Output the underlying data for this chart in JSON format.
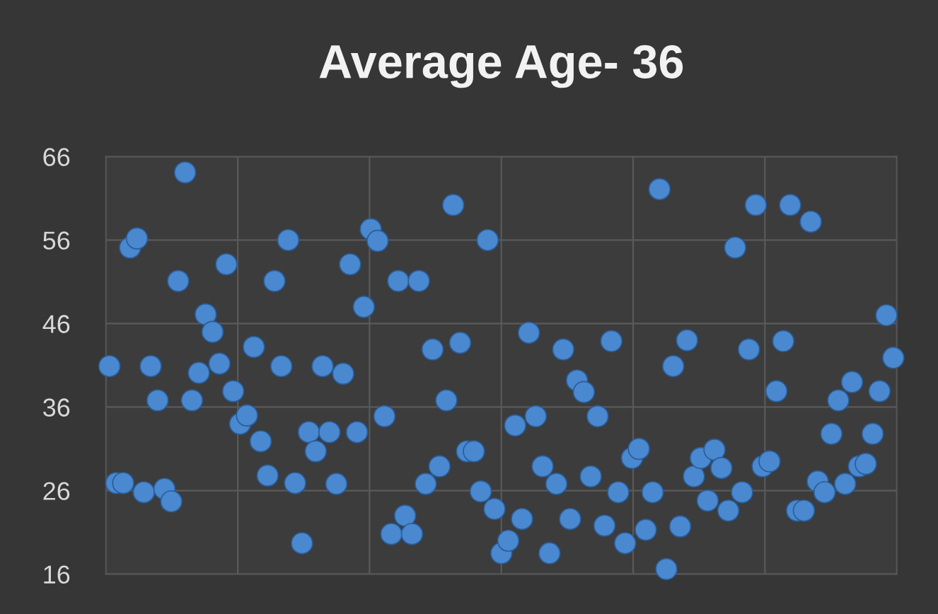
{
  "chart_data": {
    "type": "scatter",
    "title": "Average Age- 36",
    "categories": [
      null,
      null,
      null,
      null,
      null,
      null,
      null,
      null,
      null,
      null,
      null,
      null,
      null,
      null,
      null,
      null,
      null,
      null,
      null,
      null,
      null,
      null,
      null,
      null,
      null,
      null,
      null,
      null,
      null,
      null,
      null,
      null,
      null,
      null,
      null,
      null,
      null,
      null,
      null,
      null,
      null,
      null,
      null,
      null,
      null,
      null,
      null,
      null,
      null,
      null,
      null,
      null,
      null,
      null,
      null,
      null,
      null,
      null,
      null,
      null,
      null,
      null,
      null,
      null,
      null,
      null,
      null,
      null,
      null,
      null,
      null,
      null,
      null,
      null,
      null,
      null,
      null,
      null,
      null,
      null,
      null,
      null,
      null,
      null,
      null,
      null,
      null,
      null,
      null,
      null,
      null,
      null,
      null,
      null,
      null,
      null,
      null,
      null,
      null,
      null,
      null,
      null,
      null,
      null,
      null,
      null,
      null,
      null,
      null,
      null,
      null,
      null,
      null,
      null,
      null
    ],
    "series": [
      {
        "color": "#4a88cf",
        "values": [
          40.9,
          26.9,
          26.9,
          55.1,
          56.2,
          25.8,
          40.9,
          36.8,
          26.2,
          24.7,
          51.1,
          64.1,
          36.8,
          40.1,
          47.1,
          45.0,
          41.2,
          53.1,
          37.9,
          34.0,
          35.0,
          43.2,
          31.9,
          27.8,
          51.1,
          40.9,
          56.0,
          26.9,
          19.7,
          33.0,
          30.7,
          40.9,
          33.0,
          26.8,
          40.0,
          53.1,
          33.0,
          48.0,
          57.3,
          55.9,
          34.9,
          20.8,
          51.1,
          23.0,
          20.8,
          51.1,
          26.8,
          42.9,
          28.9,
          36.8,
          60.2,
          43.7,
          30.7,
          30.7,
          25.9,
          56.0,
          23.8,
          18.5,
          20.0,
          33.8,
          22.6,
          44.9,
          34.9,
          28.9,
          18.5,
          26.8,
          42.9,
          22.6,
          39.2,
          37.8,
          27.7,
          34.9,
          21.8,
          43.9,
          25.8,
          19.7,
          29.9,
          31.0,
          21.3,
          25.8,
          62.1,
          16.6,
          40.9,
          21.7,
          44.0,
          27.7,
          29.9,
          24.8,
          30.9,
          28.7,
          23.6,
          55.1,
          25.8,
          42.9,
          60.2,
          28.9,
          29.5,
          37.9,
          43.9,
          60.2,
          23.6,
          23.6,
          58.2,
          27.1,
          25.8,
          32.8,
          36.8,
          26.8,
          39.0,
          28.9,
          29.2,
          32.8,
          37.9,
          47.0,
          41.9
        ]
      }
    ],
    "ylim": [
      16,
      66
    ],
    "yticks": [
      16,
      26,
      36,
      46,
      56,
      66
    ],
    "tick_labels": "y",
    "grid": true,
    "marker": "circle"
  }
}
